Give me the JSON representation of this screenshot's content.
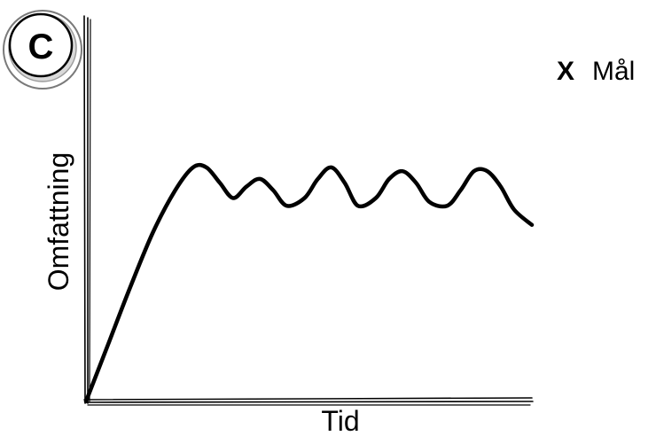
{
  "panel_letter": "C",
  "legend": {
    "marker": "X",
    "label": "Mål"
  },
  "chart_data": {
    "type": "line",
    "xlabel": "Tid",
    "ylabel": "Omfattning",
    "xlim": [
      0,
      100
    ],
    "ylim": [
      0,
      100
    ],
    "grid": false,
    "ticks": false,
    "legend_position": "top-right",
    "series": [
      {
        "x": [
          0,
          5,
          10,
          15,
          20,
          24,
          27,
          30,
          33,
          36,
          39,
          42,
          45,
          49,
          52,
          55,
          58,
          61,
          65,
          68,
          71,
          74,
          77,
          81,
          84,
          87,
          90,
          93,
          96,
          100
        ],
        "y": [
          0,
          15,
          30,
          44,
          55,
          61,
          61,
          57,
          53,
          56,
          58,
          55,
          51,
          53,
          58,
          61,
          57,
          51,
          53,
          58,
          60,
          57,
          52,
          51,
          55,
          60,
          60,
          56,
          50,
          46
        ]
      }
    ]
  }
}
